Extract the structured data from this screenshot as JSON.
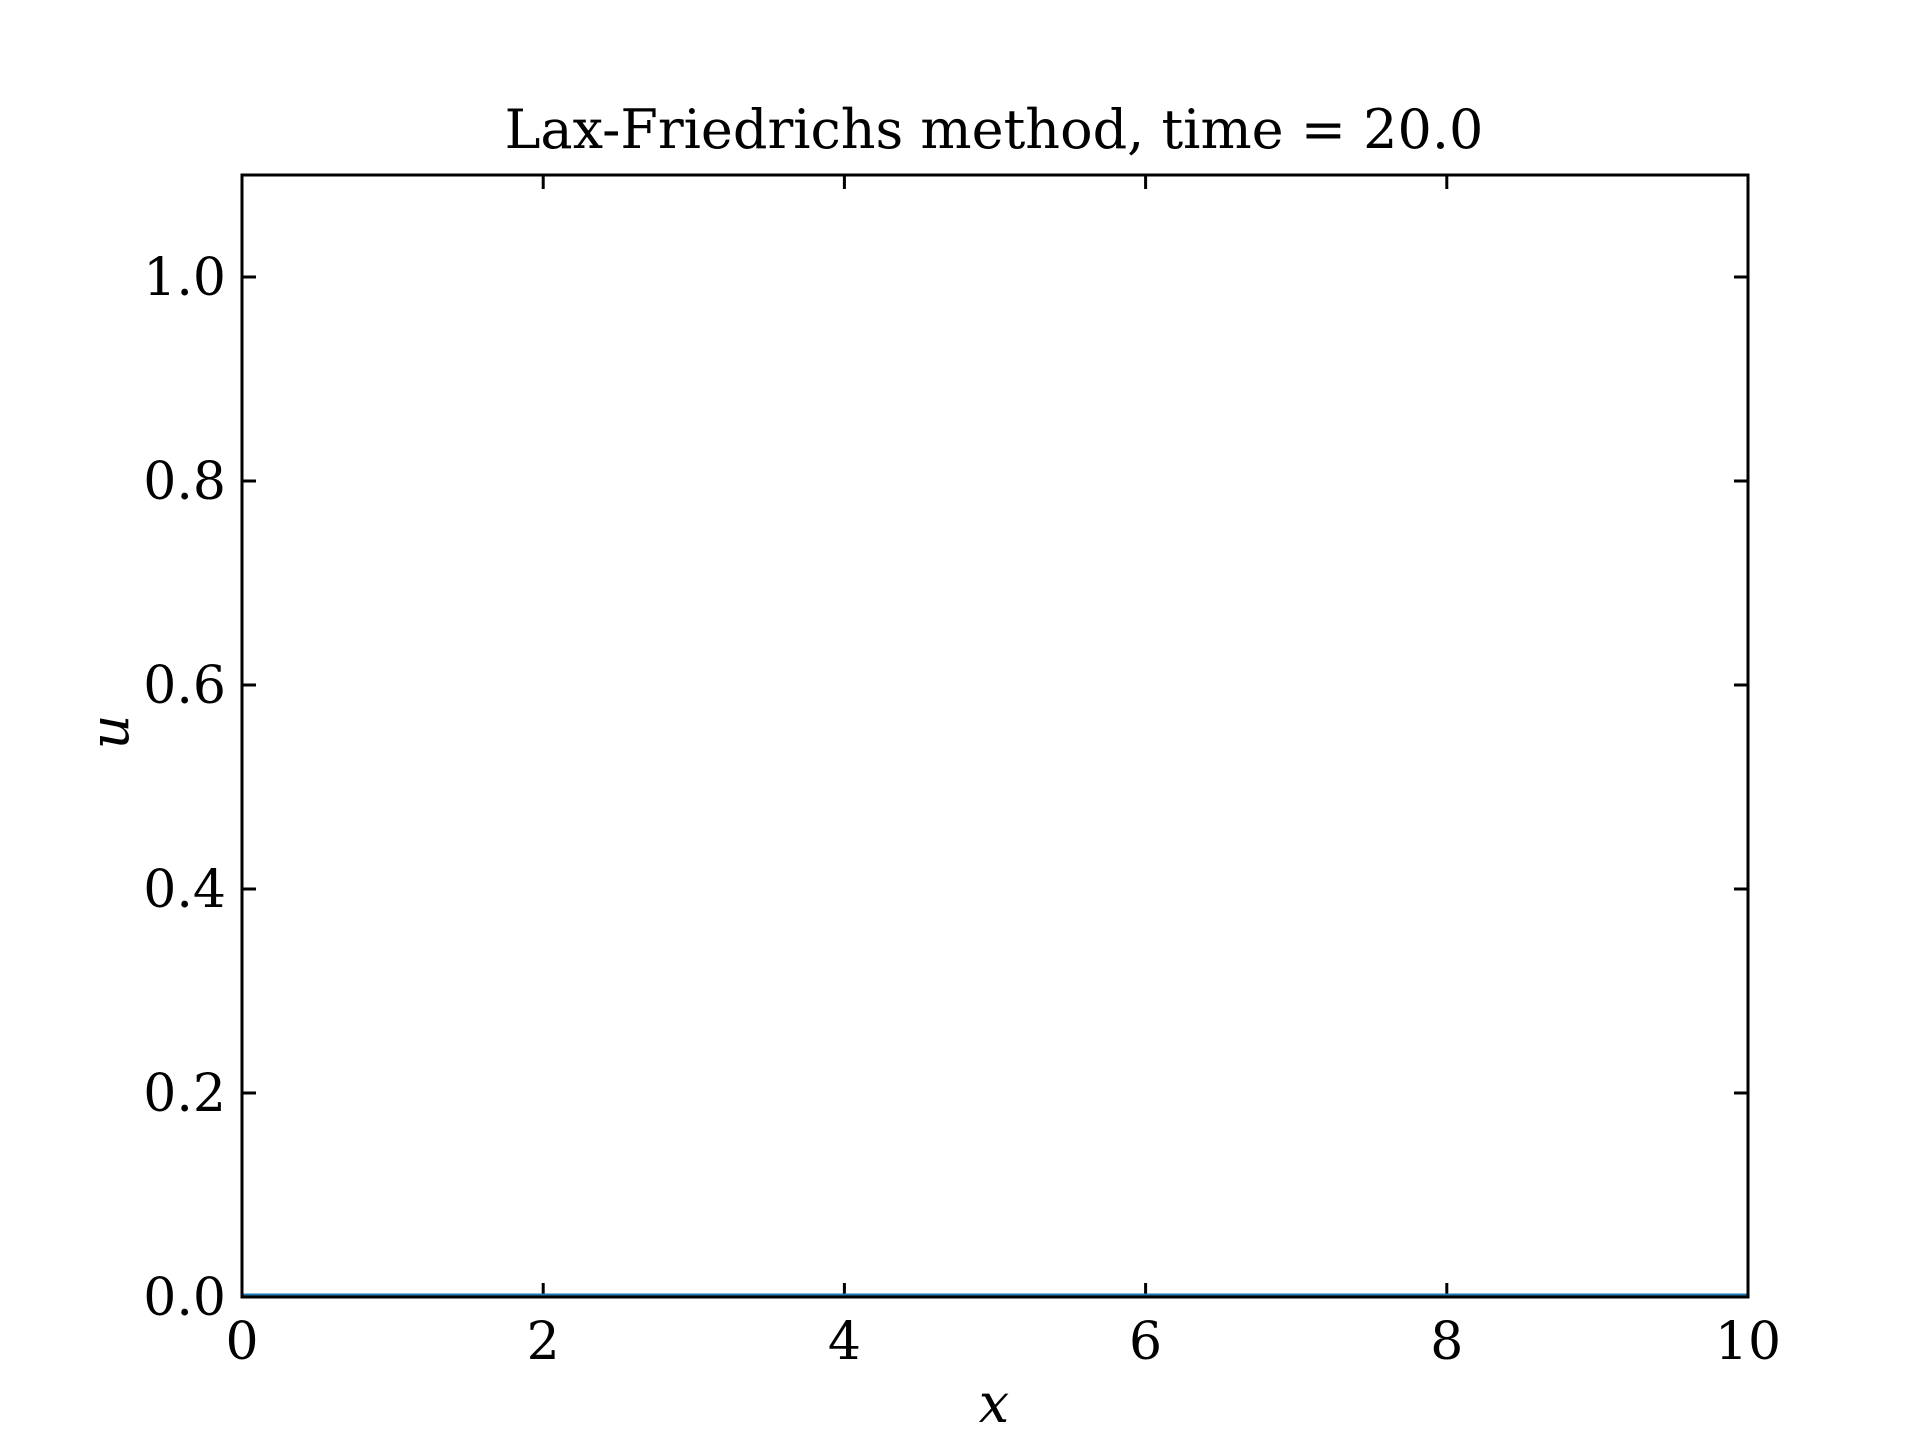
{
  "chart_data": {
    "type": "line",
    "title": "Lax-Friedrichs method, time = 20.0",
    "xlabel": "x",
    "ylabel": "u",
    "xlim": [
      0,
      10
    ],
    "ylim": [
      0,
      1.1
    ],
    "xticks": [
      0,
      2,
      4,
      6,
      8,
      10
    ],
    "xtick_labels": [
      "0",
      "2",
      "4",
      "6",
      "8",
      "10"
    ],
    "yticks": [
      0.0,
      0.2,
      0.4,
      0.6,
      0.8,
      1.0
    ],
    "ytick_labels": [
      "0.0",
      "0.2",
      "0.4",
      "0.6",
      "0.8",
      "1.0"
    ],
    "grid": false,
    "series": [
      {
        "color": "#1f77b4",
        "x": [
          0,
          10
        ],
        "y": [
          0,
          0
        ]
      }
    ]
  }
}
